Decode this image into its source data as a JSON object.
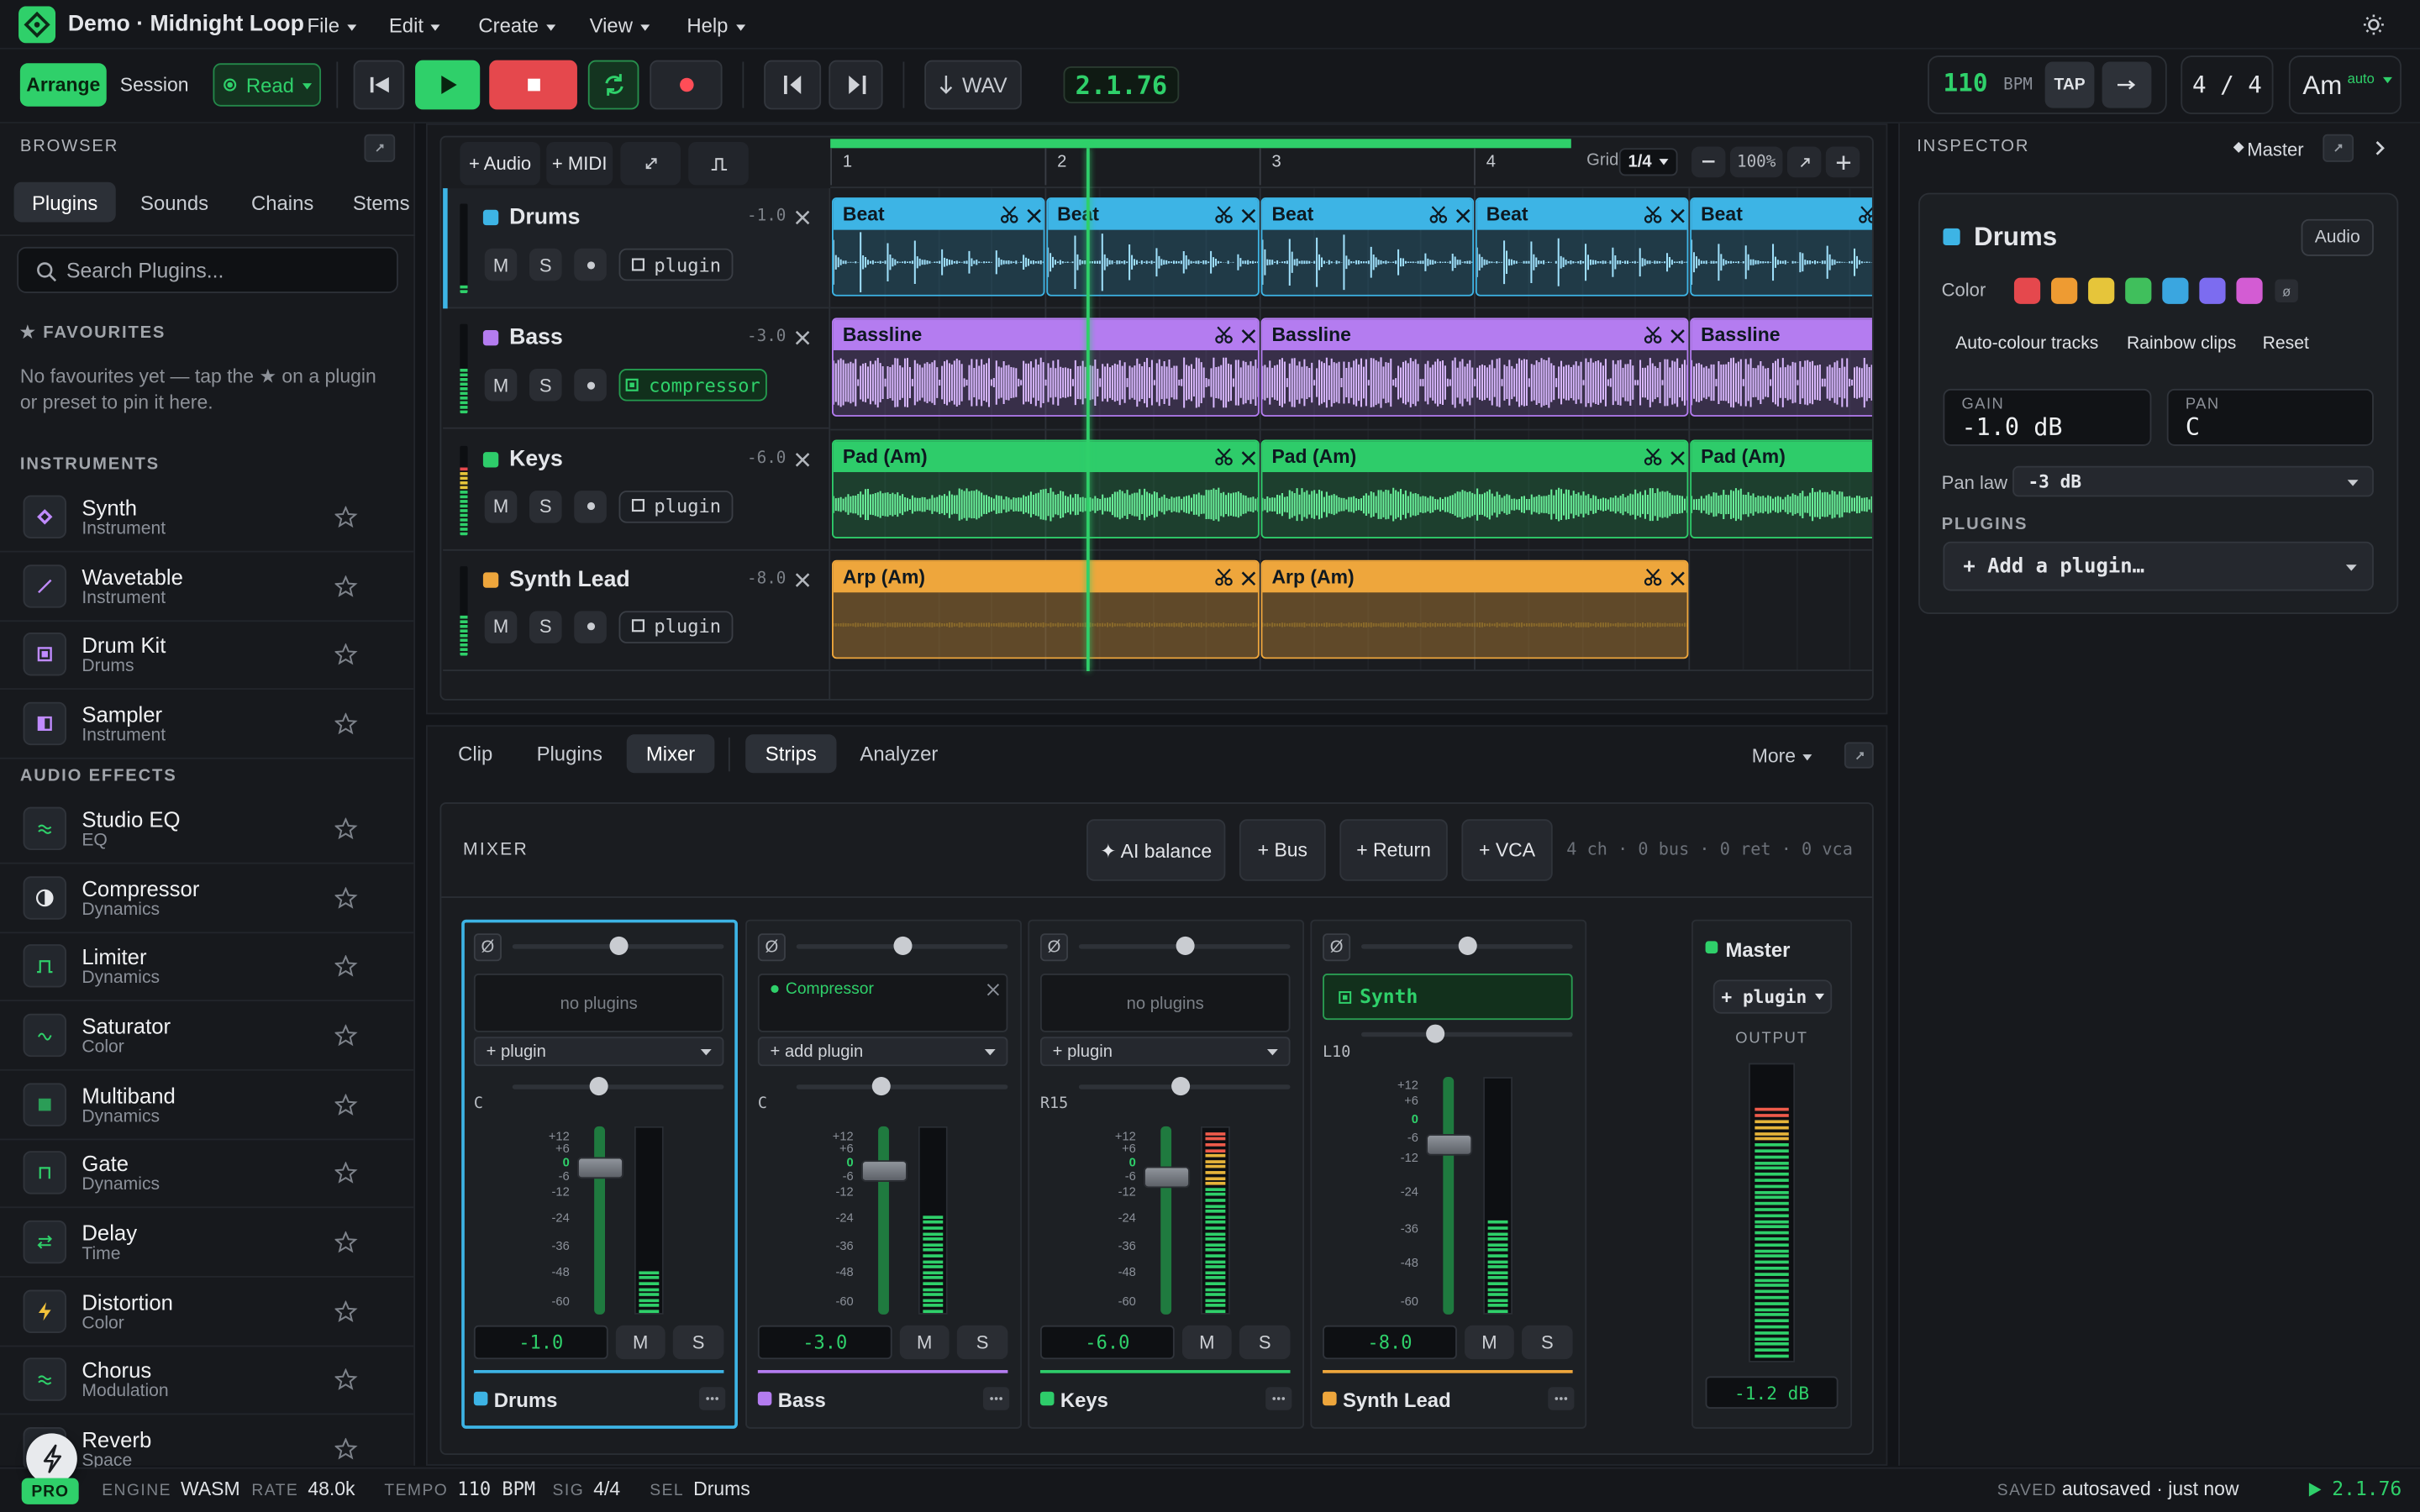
{
  "app": {
    "title": "Demo · Midnight Loop",
    "menus": [
      "File",
      "Edit",
      "Create",
      "View",
      "Help"
    ]
  },
  "transport": {
    "views": [
      "Arrange",
      "Session"
    ],
    "automation": "Read",
    "export": "WAV",
    "position": "2.1.76",
    "bpm": 110,
    "bpm_unit": "BPM",
    "tap": "TAP",
    "signature": "4 / 4",
    "key": "Am",
    "key_mode": "auto"
  },
  "browser": {
    "title": "BROWSER",
    "tabs": [
      "Plugins",
      "Sounds",
      "Chains",
      "Stems"
    ],
    "search_placeholder": "Search Plugins...",
    "favourites_title": "★ FAVOURITES",
    "favourites_empty": "No favourites yet — tap the ★ on a plugin or preset to pin it here.",
    "sections": [
      {
        "title": "INSTRUMENTS",
        "items": [
          {
            "name": "Synth",
            "type": "Instrument"
          },
          {
            "name": "Wavetable",
            "type": "Instrument"
          },
          {
            "name": "Drum Kit",
            "type": "Drums"
          },
          {
            "name": "Sampler",
            "type": "Instrument"
          }
        ]
      },
      {
        "title": "AUDIO EFFECTS",
        "items": [
          {
            "name": "Studio EQ",
            "type": "EQ"
          },
          {
            "name": "Compressor",
            "type": "Dynamics"
          },
          {
            "name": "Limiter",
            "type": "Dynamics"
          },
          {
            "name": "Saturator",
            "type": "Color"
          },
          {
            "name": "Multiband",
            "type": "Dynamics"
          },
          {
            "name": "Gate",
            "type": "Dynamics"
          },
          {
            "name": "Delay",
            "type": "Time"
          },
          {
            "name": "Distortion",
            "type": "Color"
          },
          {
            "name": "Chorus",
            "type": "Modulation"
          },
          {
            "name": "Reverb",
            "type": "Space"
          }
        ]
      }
    ]
  },
  "arrange": {
    "add_buttons": [
      "+ Audio",
      "+ MIDI"
    ],
    "bars": [
      "1",
      "2",
      "3",
      "4"
    ],
    "grid_label": "Grid",
    "grid": "1/4",
    "zoom": "100%",
    "track_buttons": [
      "M",
      "S"
    ],
    "tracks": [
      {
        "name": "Drums",
        "color": "#3db4e5",
        "gain": "-1.0",
        "plugin": "plugin",
        "clips": [
          "Beat",
          "Beat",
          "Beat",
          "Beat",
          "Beat"
        ]
      },
      {
        "name": "Bass",
        "color": "#b47cf0",
        "gain": "-3.0",
        "plugin": "compressor",
        "clips": [
          "Bassline",
          "Bassline",
          "Bassline"
        ]
      },
      {
        "name": "Keys",
        "color": "#2ecc6a",
        "gain": "-6.0",
        "plugin": "plugin",
        "clips": [
          "Pad (Am)",
          "Pad (Am)",
          "Pad (Am)"
        ]
      },
      {
        "name": "Synth Lead",
        "color": "#eea63c",
        "gain": "-8.0",
        "plugin": "plugin",
        "clips": [
          "Arp (Am)",
          "Arp (Am)"
        ]
      }
    ]
  },
  "panel": {
    "tabs": [
      "Clip",
      "Plugins",
      "Mixer"
    ],
    "views": [
      "Strips",
      "Analyzer"
    ],
    "more": "More"
  },
  "mixer": {
    "title": "MIXER",
    "actions": [
      "✦ AI balance",
      "+ Bus",
      "+ Return",
      "+ VCA"
    ],
    "summary": "4 ch · 0 bus · 0 ret · 0 vca",
    "phase": "Ø",
    "scale": [
      "+12",
      "+6",
      "0",
      "-6",
      "-12",
      "-24",
      "-36",
      "-48",
      "-60"
    ],
    "strips": [
      {
        "pan": "C",
        "plugin": "no plugins",
        "add_plugin": "+ plugin"
      },
      {
        "pan": "C",
        "plugin": "Compressor",
        "add_plugin": "+ add plugin"
      },
      {
        "pan": "R15",
        "plugin": "no plugins",
        "add_plugin": "+ plugin"
      },
      {
        "pan": "L10",
        "plugin": "Synth"
      }
    ],
    "master": {
      "name": "Master",
      "add_plugin": "+ plugin",
      "output_label": "OUTPUT",
      "level": "-1.2 dB"
    }
  },
  "inspector": {
    "title": "INSPECTOR",
    "target": "Master",
    "kind": "Audio",
    "color_label": "Color",
    "colors": [
      "#e5484d",
      "#ee9b32",
      "#e6c53a",
      "#40bf5c",
      "#3aa6e0",
      "#7c6cf0",
      "#d35cd3"
    ],
    "none_symbol": "ø",
    "actions": [
      "Auto-colour tracks",
      "Rainbow clips",
      "Reset"
    ],
    "gain_label": "GAIN",
    "gain": "-1.0 dB",
    "pan_label": "PAN",
    "pan": "C",
    "pan_law_label": "Pan law",
    "pan_law": "-3 dB",
    "plugins_title": "PLUGINS",
    "add_plugin": "+ Add a plugin…"
  },
  "status": {
    "badge": "PRO",
    "items": [
      {
        "label": "ENGINE",
        "value": "WASM"
      },
      {
        "label": "RATE",
        "value": "48.0k"
      },
      {
        "label": "TEMPO",
        "value": "110 BPM"
      },
      {
        "label": "SIG",
        "value": "4/4"
      },
      {
        "label": "SEL",
        "value": "Drums"
      }
    ],
    "saved_label": "SAVED",
    "saved": "autosaved · just now"
  }
}
